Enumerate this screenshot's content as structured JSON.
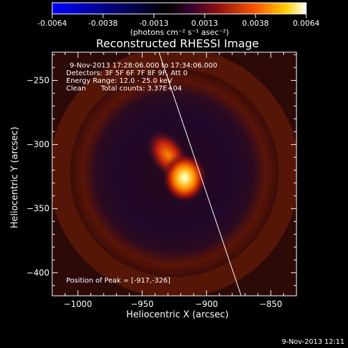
{
  "chart_data": {
    "type": "heatmap",
    "title": "Reconstructed RHESSI Image",
    "xlabel": "Heliocentric X (arcsec)",
    "ylabel": "Heliocentric Y (arcsec)",
    "xlim": [
      -1020,
      -830
    ],
    "ylim": [
      -418,
      -228
    ],
    "x_ticks": [
      -1000,
      -950,
      -900,
      -850
    ],
    "y_ticks": [
      -250,
      -300,
      -350,
      -400
    ],
    "colorbar": {
      "ticks": [
        "-0.0064",
        "-0.0038",
        "-0.0013",
        "0.0013",
        "0.0038",
        "0.0064"
      ],
      "range": [
        -0.0064,
        0.0064
      ],
      "unit": "(photons cm⁻² s⁻¹ asec⁻²)"
    },
    "annotations": {
      "time_range": "9-Nov-2013 17:28:06.000 to 17:34:06.000",
      "detectors": "Detectors: 3F 5F 6F 7F 8F 9F, Att 0",
      "energy": "Energy Range: 12.0 - 25.0 keV",
      "algorithm": "Clean",
      "total_counts": "Total counts: 3.37E+04",
      "peak": "Position of Peak = [-917,-326]"
    },
    "peak": {
      "x": -917,
      "y": -326
    },
    "limb_line": [
      {
        "x": -937,
        "y": -228
      },
      {
        "x": -873,
        "y": -418
      }
    ],
    "footer": "9-Nov-2013 12:11"
  }
}
